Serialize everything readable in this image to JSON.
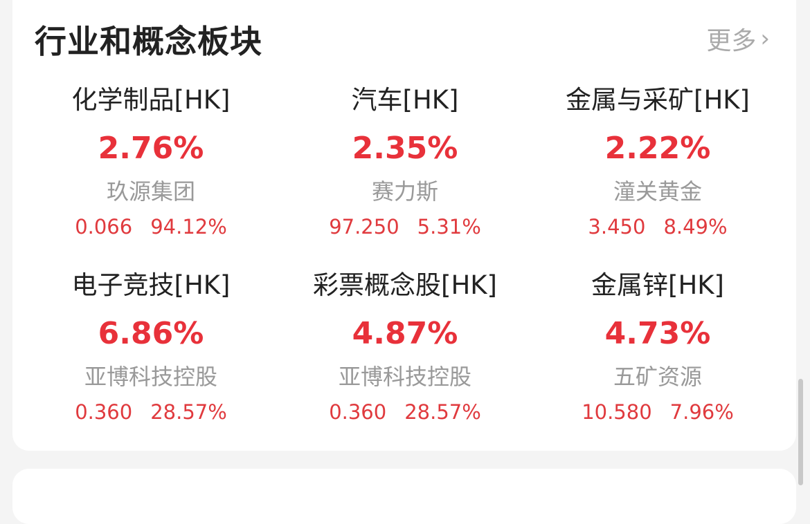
{
  "section": {
    "title": "行业和概念板块",
    "more_label": "更多",
    "more_icon": "chevron-right-icon"
  },
  "colors": {
    "up": "#e8313a"
  },
  "sectors": [
    {
      "name": "化学制品[HK]",
      "change": "2.76%",
      "top_stock": "玖源集团",
      "price": "0.066",
      "stock_change": "94.12%"
    },
    {
      "name": "汽车[HK]",
      "change": "2.35%",
      "top_stock": "赛力斯",
      "price": "97.250",
      "stock_change": "5.31%"
    },
    {
      "name": "金属与采矿[HK]",
      "change": "2.22%",
      "top_stock": "潼关黄金",
      "price": "3.450",
      "stock_change": "8.49%"
    },
    {
      "name": "电子竞技[HK]",
      "change": "6.86%",
      "top_stock": "亚博科技控股",
      "price": "0.360",
      "stock_change": "28.57%"
    },
    {
      "name": "彩票概念股[HK]",
      "change": "4.87%",
      "top_stock": "亚博科技控股",
      "price": "0.360",
      "stock_change": "28.57%"
    },
    {
      "name": "金属锌[HK]",
      "change": "4.73%",
      "top_stock": "五矿资源",
      "price": "10.580",
      "stock_change": "7.96%"
    }
  ]
}
